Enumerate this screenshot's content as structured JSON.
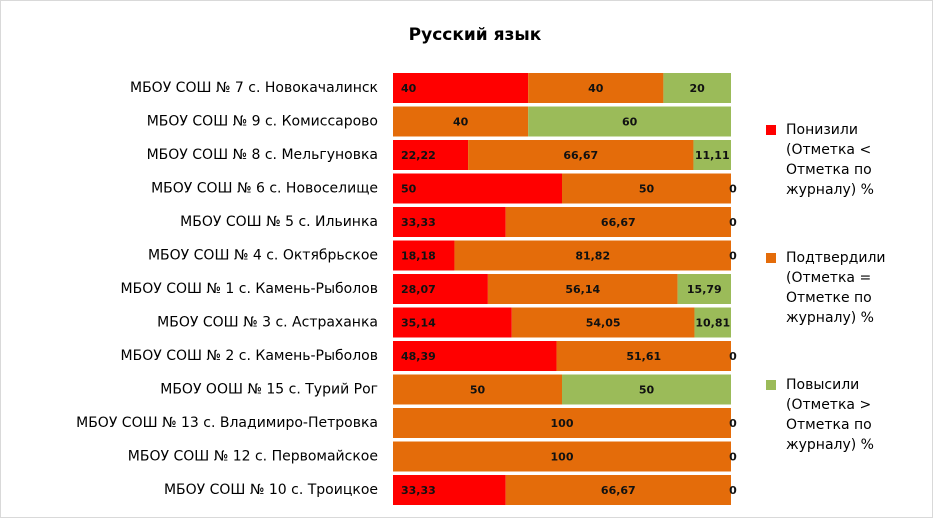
{
  "chart_data": {
    "type": "stacked-barh",
    "title": "Русский язык",
    "categories": [
      "МБОУ СОШ № 7 с. Новокачалинск",
      "МБОУ СОШ № 9 с. Комиссарово",
      "МБОУ СОШ № 8 с. Мельгуновка",
      "МБОУ СОШ № 6 с. Новоселище",
      "МБОУ СОШ № 5 с. Ильинка",
      "МБОУ СОШ № 4 с. Октябрьское",
      "МБОУ СОШ № 1 с. Камень-Рыболов",
      "МБОУ СОШ № 3 с. Астраханка",
      "МБОУ СОШ № 2 с. Камень-Рыболов",
      "МБОУ ООШ № 15 с. Турий Рог",
      "МБОУ СОШ № 13 с. Владимиро-Петровка",
      "МБОУ СОШ № 12 с. Первомайское",
      "МБОУ СОШ № 10 с. Троицкое"
    ],
    "series": [
      {
        "name": "Понизили (Отметка < Отметка по журналу) %",
        "color": "#ff0000",
        "values": [
          40,
          0,
          22.22,
          50,
          33.33,
          18.18,
          28.07,
          35.14,
          48.39,
          0,
          0,
          0,
          33.33
        ],
        "value_labels": [
          "40",
          "0",
          "22,22",
          "50",
          "33,33",
          "18,18",
          "28,07",
          "35,14",
          "48,39",
          "0",
          "0",
          "0",
          "33,33"
        ]
      },
      {
        "name": "Подтвердили (Отметка = Отметке по журналу) %",
        "color": "#e46c0a",
        "values": [
          40,
          40,
          66.67,
          50,
          66.67,
          81.82,
          56.14,
          54.05,
          51.61,
          50,
          100,
          100,
          66.67
        ],
        "value_labels": [
          "40",
          "40",
          "66,67",
          "50",
          "66,67",
          "81,82",
          "56,14",
          "54,05",
          "51,61",
          "50",
          "100",
          "100",
          "66,67"
        ]
      },
      {
        "name": "Повысили (Отметка > Отметка по журналу) %",
        "color": "#9bbb59",
        "values": [
          20,
          60,
          11.11,
          0,
          0,
          0,
          15.79,
          10.81,
          0,
          50,
          0,
          0,
          0
        ],
        "value_labels": [
          "20",
          "60",
          "11,11",
          "0",
          "0",
          "0",
          "15,79",
          "10,81",
          "0",
          "50",
          "0",
          "0",
          "0"
        ]
      }
    ],
    "xlim": [
      0,
      100
    ]
  }
}
